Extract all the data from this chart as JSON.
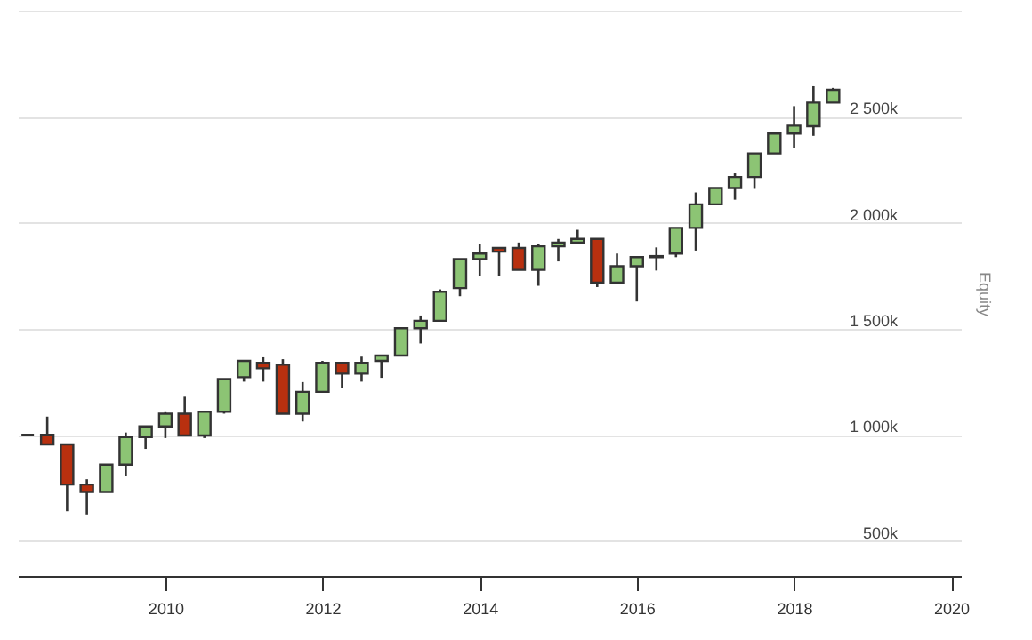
{
  "chart_data": {
    "type": "candlestick",
    "ylabel": "Equity",
    "x": [
      "2008-04",
      "2008-07",
      "2008-10",
      "2009-01",
      "2009-04",
      "2009-07",
      "2009-10",
      "2010-01",
      "2010-04",
      "2010-07",
      "2010-10",
      "2011-01",
      "2011-04",
      "2011-07",
      "2011-10",
      "2012-01",
      "2012-04",
      "2012-07",
      "2012-10",
      "2013-01",
      "2013-04",
      "2013-07",
      "2013-10",
      "2014-01",
      "2014-04",
      "2014-07",
      "2014-10",
      "2015-01",
      "2015-04",
      "2015-07",
      "2015-10",
      "2016-01",
      "2016-04",
      "2016-07",
      "2016-10",
      "2017-01",
      "2017-04",
      "2017-07",
      "2017-10",
      "2018-01",
      "2018-04",
      "2018-07"
    ],
    "ohlc": [
      [
        1000,
        1000,
        1000,
        1000
      ],
      [
        1000,
        1086,
        955,
        955
      ],
      [
        955,
        955,
        640,
        766
      ],
      [
        766,
        791,
        625,
        731
      ],
      [
        731,
        860,
        731,
        860
      ],
      [
        860,
        1011,
        806,
        989
      ],
      [
        989,
        1040,
        934,
        1040
      ],
      [
        1040,
        1111,
        985,
        1100
      ],
      [
        1100,
        1180,
        997,
        997
      ],
      [
        997,
        1109,
        985,
        1109
      ],
      [
        1109,
        1263,
        1100,
        1263
      ],
      [
        1272,
        1349,
        1251,
        1349
      ],
      [
        1340,
        1366,
        1251,
        1314
      ],
      [
        1331,
        1357,
        1100,
        1100
      ],
      [
        1100,
        1249,
        1063,
        1203
      ],
      [
        1203,
        1349,
        1203,
        1340
      ],
      [
        1340,
        1340,
        1220,
        1289
      ],
      [
        1289,
        1369,
        1251,
        1340
      ],
      [
        1349,
        1374,
        1269,
        1374
      ],
      [
        1374,
        1503,
        1374,
        1503
      ],
      [
        1503,
        1563,
        1431,
        1538
      ],
      [
        1538,
        1686,
        1538,
        1675
      ],
      [
        1692,
        1829,
        1654,
        1829
      ],
      [
        1829,
        1898,
        1749,
        1855
      ],
      [
        1881,
        1881,
        1749,
        1864
      ],
      [
        1881,
        1907,
        1778,
        1778
      ],
      [
        1778,
        1898,
        1703,
        1889
      ],
      [
        1889,
        1924,
        1818,
        1907
      ],
      [
        1907,
        1967,
        1898,
        1924
      ],
      [
        1924,
        1924,
        1697,
        1718
      ],
      [
        1718,
        1855,
        1718,
        1795
      ],
      [
        1795,
        1838,
        1629,
        1838
      ],
      [
        1838,
        1884,
        1775,
        1843
      ],
      [
        1855,
        1976,
        1838,
        1976
      ],
      [
        1976,
        2143,
        1869,
        2087
      ],
      [
        2087,
        2164,
        2087,
        2164
      ],
      [
        2164,
        2233,
        2109,
        2216
      ],
      [
        2216,
        2327,
        2160,
        2327
      ],
      [
        2327,
        2430,
        2327,
        2421
      ],
      [
        2421,
        2550,
        2352,
        2458
      ],
      [
        2455,
        2644,
        2410,
        2567
      ],
      [
        2567,
        2636,
        2567,
        2627
      ]
    ],
    "colors": [
      "#333333",
      "#b8300f",
      "#b8300f",
      "#b8300f",
      "#8cc474",
      "#8cc474",
      "#8cc474",
      "#8cc474",
      "#b8300f",
      "#8cc474",
      "#8cc474",
      "#8cc474",
      "#b8300f",
      "#b8300f",
      "#8cc474",
      "#8cc474",
      "#b8300f",
      "#8cc474",
      "#8cc474",
      "#8cc474",
      "#8cc474",
      "#8cc474",
      "#8cc474",
      "#8cc474",
      "#b8300f",
      "#b8300f",
      "#8cc474",
      "#8cc474",
      "#8cc474",
      "#b8300f",
      "#8cc474",
      "#8cc474",
      "#8cc474",
      "#8cc474",
      "#8cc474",
      "#8cc474",
      "#8cc474",
      "#8cc474",
      "#8cc474",
      "#8cc474",
      "#8cc474",
      "#8cc474"
    ],
    "xlim": [
      "2008-02-15",
      "2020-02-15"
    ],
    "xticks": [
      "2010",
      "2012",
      "2014",
      "2016",
      "2018",
      "2020"
    ],
    "ylim": [
      335,
      3000
    ],
    "yticks": [
      {
        "value": 500,
        "label": "500k"
      },
      {
        "value": 1000,
        "label": "1 000k"
      },
      {
        "value": 1500,
        "label": "1 500k"
      },
      {
        "value": 2000,
        "label": "2 000k"
      },
      {
        "value": 2500,
        "label": "2 500k"
      },
      {
        "value": 3000,
        "label": null
      }
    ],
    "grid": "y"
  }
}
